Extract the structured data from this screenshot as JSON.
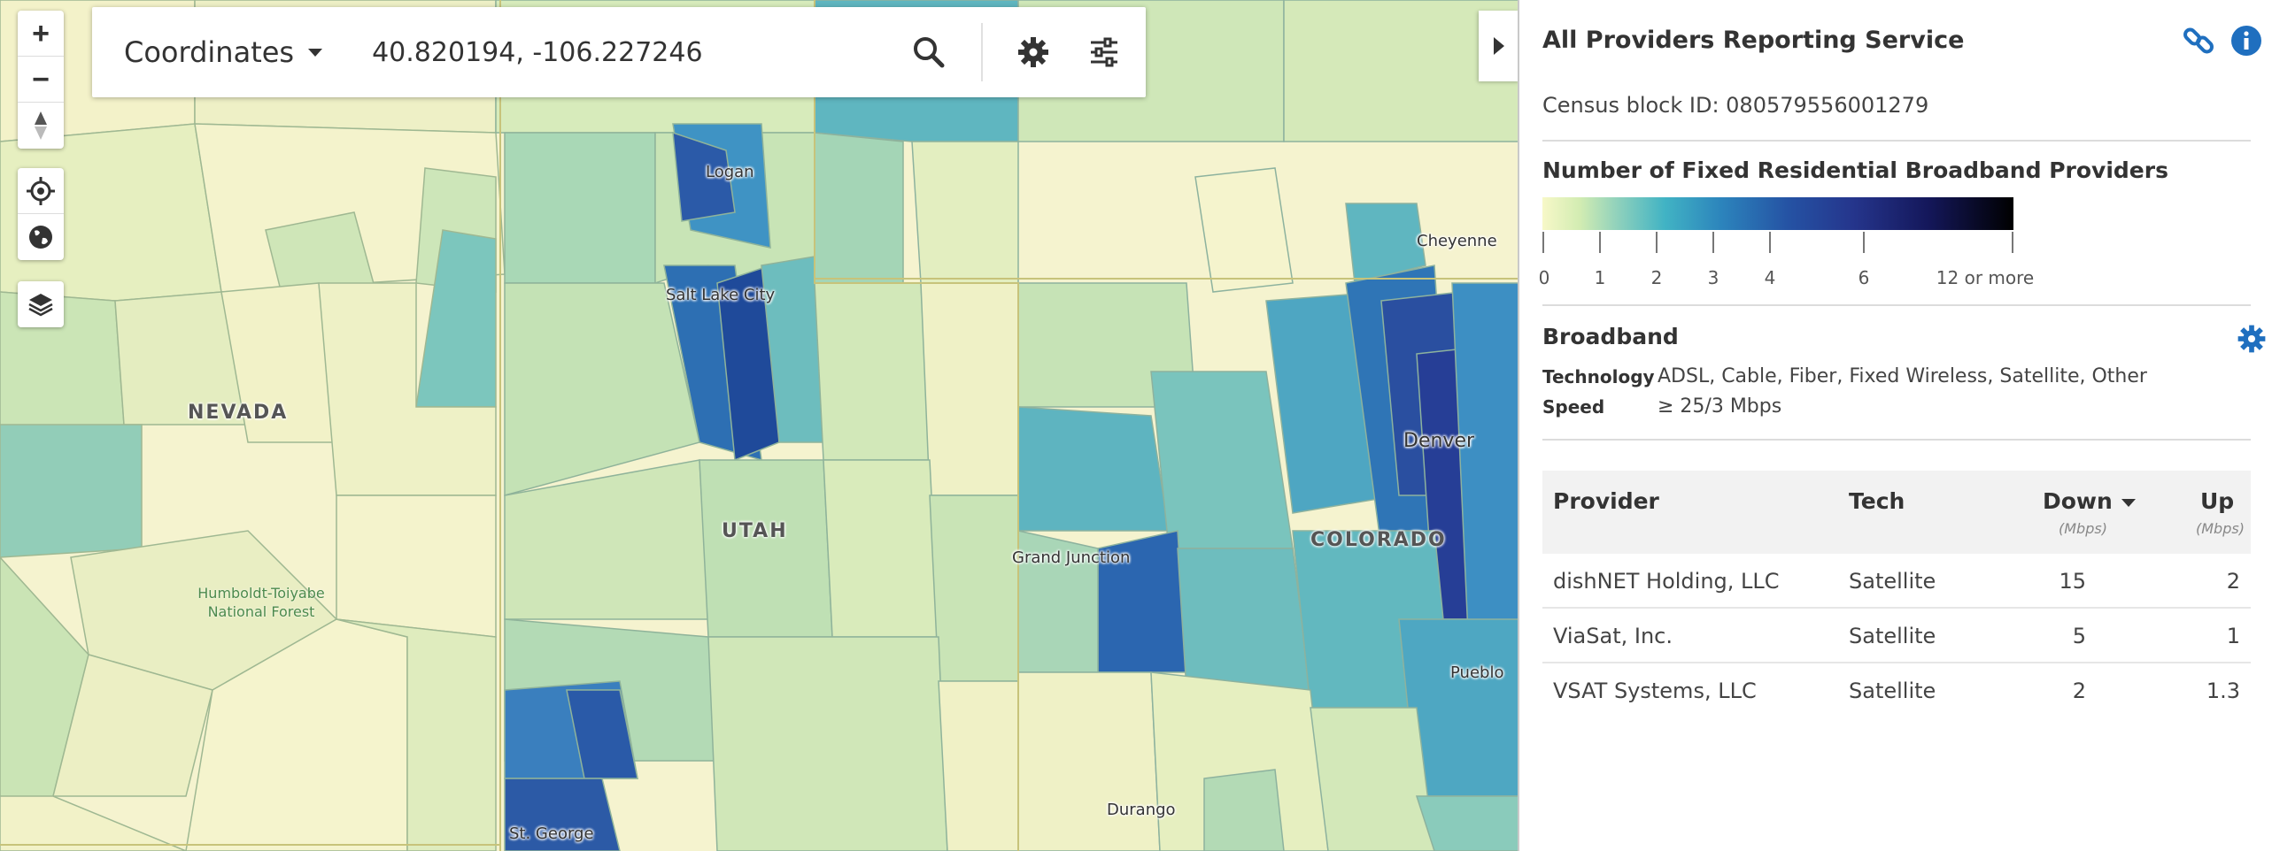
{
  "map": {
    "state_labels": [
      "NEVADA",
      "UTAH",
      "COLORADO"
    ],
    "cities": [
      "Logan",
      "Salt Lake City",
      "Cheyenne",
      "Denver",
      "Grand Junction",
      "Pueblo",
      "St. George",
      "Durango"
    ],
    "forest_label": [
      "Humboldt-Toiyabe",
      "National Forest"
    ]
  },
  "search": {
    "mode_label": "Coordinates",
    "coordinates": "40.820194, -106.227246",
    "search_icon": "search-icon",
    "settings_icon": "gear-icon",
    "filter_icon": "sliders-icon"
  },
  "panel": {
    "title": "All Providers Reporting Service",
    "census_block": "Census block ID: 080579556001279",
    "legend_title": "Number of Fixed Residential Broadband Providers",
    "legend_ticks": [
      "0",
      "1",
      "2",
      "3",
      "4",
      "6",
      "12 or more"
    ],
    "broadband_title": "Broadband",
    "technology_label": "Technology",
    "technology_value": "ADSL, Cable, Fiber, Fixed Wireless, Satellite, Other",
    "speed_label": "Speed",
    "speed_value": "≥ 25/3 Mbps"
  },
  "table": {
    "headers": {
      "provider": "Provider",
      "tech": "Tech",
      "down": "Down",
      "up": "Up",
      "unit": "(Mbps)"
    },
    "rows": [
      {
        "provider": "dishNET Holding, LLC",
        "tech": "Satellite",
        "down": "15",
        "up": "2"
      },
      {
        "provider": "ViaSat, Inc.",
        "tech": "Satellite",
        "down": "5",
        "up": "1"
      },
      {
        "provider": "VSAT Systems, LLC",
        "tech": "Satellite",
        "down": "2",
        "up": "1.3"
      }
    ]
  },
  "colors": {
    "accent": "#1f6fbf",
    "level0": "#f7f8c8",
    "level1": "#b9e0b1",
    "level2": "#6cc3bb",
    "level3": "#3aa0c6",
    "level4": "#2a68b1",
    "level6": "#243b93"
  }
}
